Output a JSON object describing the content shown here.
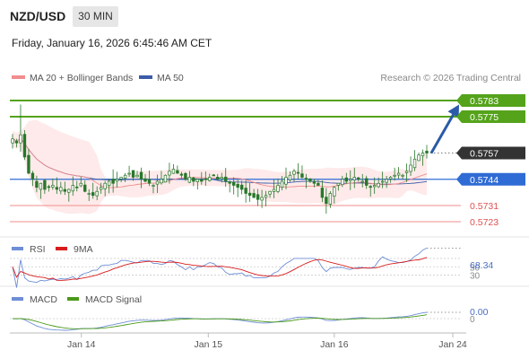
{
  "header": {
    "symbol": "NZD/USD",
    "timeframe": "30 MIN",
    "datetime": "Friday, January 16, 2026 6:45:46 AM CET"
  },
  "legend": {
    "ma20_label": "MA 20 + Bollinger Bands",
    "ma50_label": "MA 50",
    "source": "Research © 2026 Trading Central"
  },
  "colors": {
    "candle": "#27772a",
    "resistance": "#55a31b",
    "pivot": "#2f6bd4",
    "support": "#f08e8e",
    "ma20": "#f08e8e",
    "ma50": "#3c5ca8",
    "bollinger": "#fde3e3",
    "arrow": "#2a5aa8",
    "last_price": "#333333",
    "rsi": "#6e8ed6",
    "rsi_ma": "#d81c1c",
    "macd": "#6e8ed6",
    "macd_signal": "#4a9a18"
  },
  "chart_data": [
    {
      "type": "candlestick",
      "y_range": [
        0.5719,
        0.5787
      ],
      "levels": [
        {
          "name": "resistance-2",
          "value": 0.5783,
          "label": "0.5783",
          "kind": "resistance"
        },
        {
          "name": "resistance-1",
          "value": 0.5775,
          "label": "0.5775",
          "kind": "resistance"
        },
        {
          "name": "last-price",
          "value": 0.5757,
          "label": "0.5757",
          "kind": "last"
        },
        {
          "name": "pivot",
          "value": 0.5744,
          "label": "0.5744",
          "kind": "pivot"
        },
        {
          "name": "support-1",
          "value": 0.5731,
          "label": "0.5731",
          "kind": "support"
        },
        {
          "name": "support-2",
          "value": 0.5723,
          "label": "0.5723",
          "kind": "support"
        }
      ],
      "closes": [
        0.5764,
        0.5762,
        0.5766,
        0.5755,
        0.5747,
        0.5744,
        0.574,
        0.5742,
        0.5739,
        0.574,
        0.5741,
        0.5739,
        0.574,
        0.5738,
        0.5739,
        0.5741,
        0.574,
        0.5742,
        0.5738,
        0.5737,
        0.5736,
        0.5738,
        0.574,
        0.5742,
        0.5743,
        0.5742,
        0.5744,
        0.5745,
        0.5746,
        0.5747,
        0.5745,
        0.5746,
        0.5744,
        0.5743,
        0.5742,
        0.5741,
        0.5743,
        0.5744,
        0.5746,
        0.5748,
        0.5749,
        0.5747,
        0.5746,
        0.5744,
        0.5745,
        0.5743,
        0.5744,
        0.5743,
        0.5744,
        0.5745,
        0.5746,
        0.5744,
        0.5745,
        0.5743,
        0.5742,
        0.5741,
        0.574,
        0.5739,
        0.5737,
        0.5736,
        0.5735,
        0.5734,
        0.5735,
        0.5736,
        0.5738,
        0.5739,
        0.5741,
        0.5743,
        0.5745,
        0.5746,
        0.5748,
        0.5747,
        0.5745,
        0.5744,
        0.5743,
        0.5742,
        0.5741,
        0.5735,
        0.5732,
        0.5737,
        0.574,
        0.5742,
        0.5744,
        0.5743,
        0.5744,
        0.5745,
        0.5744,
        0.5743,
        0.5741,
        0.574,
        0.5741,
        0.5742,
        0.5743,
        0.5744,
        0.5745,
        0.5746,
        0.5747,
        0.5746,
        0.5748,
        0.5751,
        0.5754,
        0.5756,
        0.5757,
        0.5757
      ],
      "forecast_arrow": {
        "from": 0.5757,
        "to": 0.5781
      }
    },
    {
      "type": "line",
      "indicator": "RSI",
      "series": [
        {
          "name": "RSI"
        },
        {
          "name": "9MA"
        }
      ],
      "levels": [
        70,
        50,
        30
      ],
      "value_label": "68.34"
    },
    {
      "type": "line",
      "indicator": "MACD",
      "series": [
        {
          "name": "MACD"
        },
        {
          "name": "MACD Signal"
        }
      ],
      "value_label": "0.00"
    }
  ],
  "x_axis": {
    "ticks": [
      {
        "label": "Jan 14",
        "index": 16
      },
      {
        "label": "Jan 15",
        "index": 48
      },
      {
        "label": "Jan 16",
        "index": 80
      },
      {
        "label": "Jan 24",
        "index": 96
      }
    ]
  }
}
